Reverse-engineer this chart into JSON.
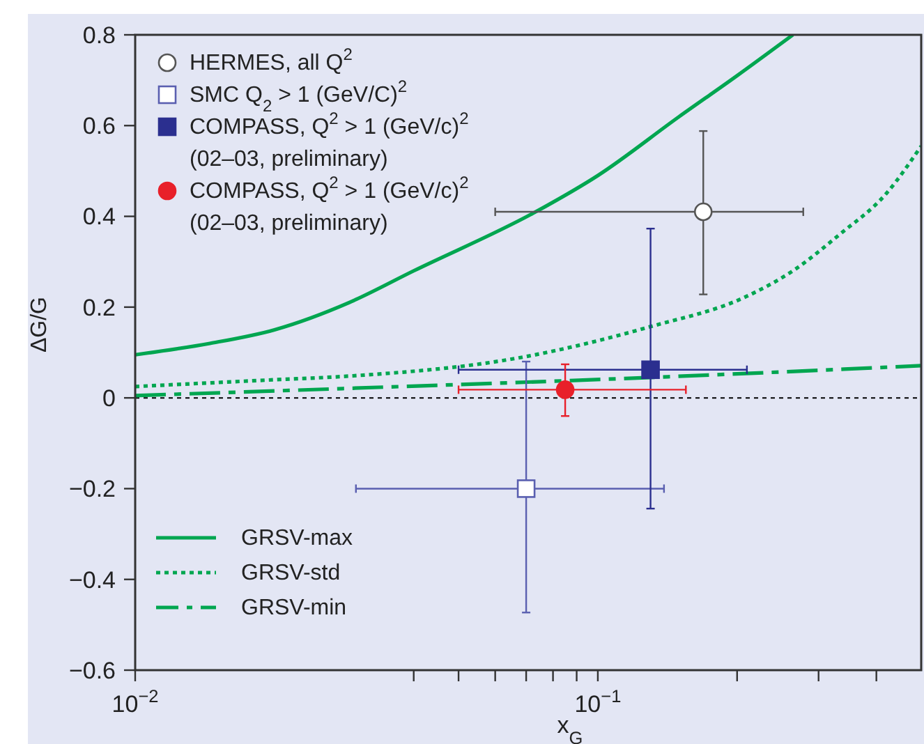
{
  "chart_data": {
    "type": "scatter",
    "xlabel": "x$_{G}$",
    "ylabel": "ΔG/G",
    "log": "x",
    "xlim": [
      0.01,
      0.5
    ],
    "xticks": [
      {
        "value": 0.01,
        "label": "10$^{−2}$"
      },
      {
        "value": 0.04,
        "label": null
      },
      {
        "value": 0.05,
        "label": null
      },
      {
        "value": 0.06,
        "label": null
      },
      {
        "value": 0.07,
        "label": null
      },
      {
        "value": 0.08,
        "label": null
      },
      {
        "value": 0.09,
        "label": null
      },
      {
        "value": 0.1,
        "label": "10$^{−1}$"
      },
      {
        "value": 0.2,
        "label": null
      },
      {
        "value": 0.3,
        "label": null
      },
      {
        "value": 0.4,
        "label": null
      }
    ],
    "ylim": [
      -0.6,
      0.8
    ],
    "yticks": [
      -0.6,
      -0.4,
      -0.2,
      0,
      0.2,
      0.4,
      0.6,
      0.8
    ],
    "grid": false,
    "legend": "top left",
    "ref_lines": [
      {
        "axis": "y",
        "value": 0,
        "label": null,
        "color": "#000000",
        "line_style": "dotted"
      }
    ],
    "series": [
      {
        "name": "HERMES, all Q$^{2}$",
        "marker": "circle",
        "colors": [
          "#ffffff"
        ],
        "color": "#555555",
        "x": [
          0.169
        ],
        "values": [
          0.41
        ],
        "errors": [
          [
            0.228,
            0.588
          ]
        ],
        "xerrors": [
          [
            0.06,
            0.278
          ]
        ]
      },
      {
        "name": "SMC Q$_{2}$ > 1 (GeV/C)$^{2}$",
        "marker": "square",
        "colors": [
          "#ffffff"
        ],
        "color": "#5a5fb0",
        "x": [
          0.07
        ],
        "values": [
          -0.2
        ],
        "errors": [
          [
            -0.473,
            0.08
          ]
        ],
        "xerrors": [
          [
            0.03,
            0.139
          ]
        ]
      },
      {
        "name": "COMPASS, Q$^{2}$ > 1 (GeV/c)$^{2}$\n(02–03, preliminary)",
        "marker": "square",
        "color": "#2b2f8f",
        "x": [
          0.13
        ],
        "values": [
          0.062
        ],
        "errors": [
          [
            -0.244,
            0.373
          ]
        ],
        "xerrors": [
          [
            0.05,
            0.21
          ]
        ]
      },
      {
        "name": "COMPASS, Q$^{2}$ > 1 (GeV/c)$^{2}$\n(02–03, preliminary)",
        "marker": "circle",
        "color": "#e8202a",
        "x": [
          0.085
        ],
        "values": [
          0.018
        ],
        "errors": [
          [
            -0.04,
            0.074
          ]
        ],
        "xerrors": [
          [
            0.05,
            0.155
          ]
        ]
      },
      {
        "name": "GRSV-max",
        "type": "line",
        "line_style": "solid",
        "marker": "none",
        "color": "#00a650",
        "x": [
          0.01,
          0.0145,
          0.02,
          0.029,
          0.04,
          0.0734,
          0.1,
          0.15,
          0.2,
          0.264
        ],
        "values": [
          0.095,
          0.12,
          0.15,
          0.21,
          0.28,
          0.41,
          0.49,
          0.62,
          0.71,
          0.8
        ]
      },
      {
        "name": "GRSV-std",
        "type": "line",
        "line_style": "dotted",
        "marker": "none",
        "color": "#00a650",
        "x": [
          0.01,
          0.02,
          0.029,
          0.069,
          0.13,
          0.21,
          0.264,
          0.333,
          0.42,
          0.5
        ],
        "values": [
          0.025,
          0.04,
          0.048,
          0.09,
          0.157,
          0.224,
          0.28,
          0.36,
          0.45,
          0.555
        ]
      },
      {
        "name": "GRSV-min",
        "type": "line",
        "line_style": "dashdot",
        "marker": "none",
        "color": "#00a650",
        "x": [
          0.01,
          0.029,
          0.13,
          0.5
        ],
        "values": [
          0.005,
          0.021,
          0.045,
          0.071
        ]
      }
    ]
  }
}
